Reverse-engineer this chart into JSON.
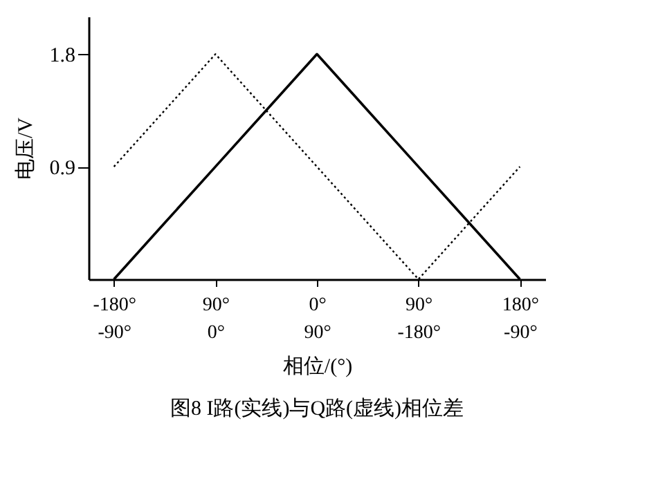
{
  "chart_data": {
    "type": "line",
    "title": "图8  I路(实线)与Q路(虚线)相位差",
    "xlabel": "相位/(°)",
    "ylabel": "电压/V",
    "categories": [
      "-180°\n-90°",
      null,
      "90°\n0°",
      null,
      "0°\n90°",
      null,
      "90°\n-180°",
      null,
      "180°\n-90°"
    ],
    "ylim": [
      0,
      2.1
    ],
    "yticks": [
      0.9,
      1.8
    ],
    "marker": "none",
    "series": [
      {
        "color": "#000000",
        "line_style": "solid",
        "values": [
          0,
          0.45,
          0.9,
          1.35,
          1.8,
          1.35,
          0.9,
          0.45,
          0
        ]
      },
      {
        "color": "#000000",
        "line_style": "dotted",
        "values": [
          0.9,
          1.35,
          1.8,
          1.35,
          0.9,
          0.45,
          0,
          0.45,
          0.9
        ]
      }
    ]
  }
}
